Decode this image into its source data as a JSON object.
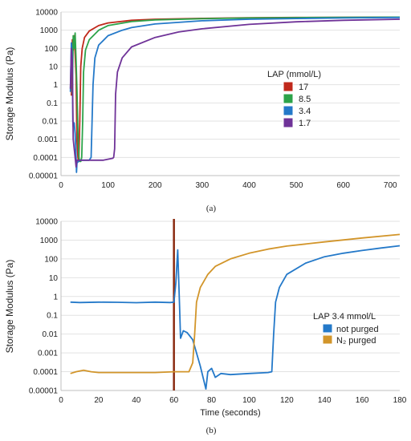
{
  "chart_data": [
    {
      "type": "line",
      "panel_label": "(a)",
      "ylabel": "Storage Modulus (Pa)",
      "xlabel": "",
      "y_scale": "log",
      "ylim": [
        1e-05,
        10000
      ],
      "xlim": [
        0,
        720
      ],
      "x_ticks": [
        "0",
        "100",
        "200",
        "300",
        "400",
        "500",
        "600",
        "700"
      ],
      "y_ticks": [
        "0.00001",
        "0.0001",
        "0.001",
        "0.01",
        "0.1",
        "1",
        "10",
        "100",
        "1000",
        "10000"
      ],
      "legend_title": "LAP (mmol/L)",
      "legend_position": "right",
      "series": [
        {
          "name": "17",
          "color": "#c0281b",
          "points": [
            [
              22,
              0.25
            ],
            [
              24,
              300
            ],
            [
              26,
              80
            ],
            [
              28,
              500
            ],
            [
              30,
              50
            ],
            [
              32,
              3
            ],
            [
              33,
              0.05
            ],
            [
              34,
              0.0008
            ],
            [
              36,
              0.0001
            ],
            [
              37,
              6e-05
            ],
            [
              38,
              0.0001
            ],
            [
              40,
              0.01
            ],
            [
              42,
              10
            ],
            [
              45,
              100
            ],
            [
              50,
              400
            ],
            [
              60,
              900
            ],
            [
              80,
              1800
            ],
            [
              100,
              2500
            ],
            [
              150,
              3500
            ],
            [
              200,
              4000
            ],
            [
              300,
              4500
            ],
            [
              400,
              4800
            ],
            [
              500,
              5000
            ],
            [
              600,
              5100
            ],
            [
              720,
              5200
            ]
          ]
        },
        {
          "name": "8.5",
          "color": "#2ca349",
          "points": [
            [
              24,
              0.3
            ],
            [
              26,
              500
            ],
            [
              28,
              100
            ],
            [
              30,
              700
            ],
            [
              32,
              20
            ],
            [
              34,
              0.5
            ],
            [
              36,
              0.002
            ],
            [
              38,
              0.0001
            ],
            [
              40,
              6e-05
            ],
            [
              42,
              6e-05
            ],
            [
              44,
              0.0001
            ],
            [
              46,
              0.01
            ],
            [
              48,
              5
            ],
            [
              52,
              80
            ],
            [
              60,
              300
            ],
            [
              80,
              1000
            ],
            [
              100,
              1800
            ],
            [
              150,
              3000
            ],
            [
              200,
              3700
            ],
            [
              300,
              4300
            ],
            [
              400,
              4700
            ],
            [
              500,
              4900
            ],
            [
              600,
              5100
            ],
            [
              720,
              5200
            ]
          ]
        },
        {
          "name": "3.4",
          "color": "#2479c9",
          "points": [
            [
              20,
              0.4
            ],
            [
              22,
              200
            ],
            [
              24,
              30
            ],
            [
              25,
              0.01
            ],
            [
              26,
              0.005
            ],
            [
              28,
              0.008
            ],
            [
              30,
              0.002
            ],
            [
              32,
              0.0001
            ],
            [
              33,
              1.5e-05
            ],
            [
              34,
              5e-05
            ],
            [
              40,
              7e-05
            ],
            [
              60,
              7e-05
            ],
            [
              64,
              0.0001
            ],
            [
              66,
              0.01
            ],
            [
              68,
              1
            ],
            [
              72,
              30
            ],
            [
              80,
              150
            ],
            [
              100,
              500
            ],
            [
              130,
              1000
            ],
            [
              150,
              1400
            ],
            [
              200,
              2200
            ],
            [
              300,
              3300
            ],
            [
              400,
              4000
            ],
            [
              500,
              4400
            ],
            [
              600,
              4700
            ],
            [
              720,
              5000
            ]
          ]
        },
        {
          "name": "1.7",
          "color": "#6f3398",
          "points": [
            [
              20,
              0.6
            ],
            [
              22,
              100
            ],
            [
              24,
              20
            ],
            [
              26,
              0.001
            ],
            [
              30,
              0.0001
            ],
            [
              32,
              3e-05
            ],
            [
              34,
              7e-05
            ],
            [
              60,
              7e-05
            ],
            [
              90,
              7e-05
            ],
            [
              110,
              9e-05
            ],
            [
              112,
              0.0001
            ],
            [
              114,
              0.0003
            ],
            [
              116,
              0.3
            ],
            [
              120,
              5
            ],
            [
              130,
              30
            ],
            [
              150,
              120
            ],
            [
              200,
              400
            ],
            [
              250,
              800
            ],
            [
              300,
              1200
            ],
            [
              400,
              2100
            ],
            [
              500,
              2900
            ],
            [
              600,
              3500
            ],
            [
              720,
              4000
            ]
          ]
        }
      ]
    },
    {
      "type": "line",
      "panel_label": "(b)",
      "ylabel": "Storage Modulus (Pa)",
      "xlabel": "Time (seconds)",
      "y_scale": "log",
      "ylim": [
        1e-05,
        10000
      ],
      "xlim": [
        0,
        180
      ],
      "x_ticks": [
        "0",
        "20",
        "40",
        "60",
        "80",
        "100",
        "120",
        "140",
        "160",
        "180"
      ],
      "y_ticks": [
        "0.00001",
        "0.0001",
        "0.001",
        "0.01",
        "0.1",
        "1",
        "10",
        "100",
        "1000",
        "10000"
      ],
      "legend_title": "LAP 3.4 mmol/L",
      "legend_position": "right",
      "marker_line": {
        "x": 60,
        "color": "#8b2a10"
      },
      "series": [
        {
          "name": "not purged",
          "color": "#2479c9",
          "points": [
            [
              5,
              0.5
            ],
            [
              10,
              0.48
            ],
            [
              20,
              0.5
            ],
            [
              30,
              0.49
            ],
            [
              40,
              0.47
            ],
            [
              50,
              0.5
            ],
            [
              58,
              0.48
            ],
            [
              60,
              0.5
            ],
            [
              61,
              5
            ],
            [
              62,
              300
            ],
            [
              63,
              0.3
            ],
            [
              63.5,
              0.006
            ],
            [
              65,
              0.015
            ],
            [
              67,
              0.012
            ],
            [
              70,
              0.005
            ],
            [
              72,
              0.001
            ],
            [
              74,
              0.0002
            ],
            [
              76,
              3e-05
            ],
            [
              77,
              1.2e-05
            ],
            [
              78,
              0.0001
            ],
            [
              80,
              0.00015
            ],
            [
              82,
              5e-05
            ],
            [
              85,
              8e-05
            ],
            [
              90,
              7e-05
            ],
            [
              100,
              8e-05
            ],
            [
              110,
              9e-05
            ],
            [
              112,
              0.0001
            ],
            [
              113,
              0.01
            ],
            [
              114,
              0.5
            ],
            [
              116,
              3
            ],
            [
              120,
              15
            ],
            [
              130,
              60
            ],
            [
              140,
              130
            ],
            [
              150,
              200
            ],
            [
              160,
              280
            ],
            [
              170,
              380
            ],
            [
              180,
              500
            ]
          ]
        },
        {
          "name": "N₂ purged",
          "color": "#d2952a",
          "points": [
            [
              5,
              8e-05
            ],
            [
              8,
              0.0001
            ],
            [
              12,
              0.00012
            ],
            [
              16,
              0.0001
            ],
            [
              20,
              9e-05
            ],
            [
              30,
              9e-05
            ],
            [
              40,
              9e-05
            ],
            [
              50,
              9e-05
            ],
            [
              60,
              0.0001
            ],
            [
              68,
              0.0001
            ],
            [
              70,
              0.0003
            ],
            [
              71,
              0.01
            ],
            [
              72,
              0.5
            ],
            [
              74,
              3
            ],
            [
              78,
              15
            ],
            [
              82,
              40
            ],
            [
              90,
              100
            ],
            [
              100,
              200
            ],
            [
              110,
              330
            ],
            [
              120,
              480
            ],
            [
              140,
              800
            ],
            [
              160,
              1300
            ],
            [
              180,
              2000
            ]
          ]
        }
      ]
    }
  ]
}
